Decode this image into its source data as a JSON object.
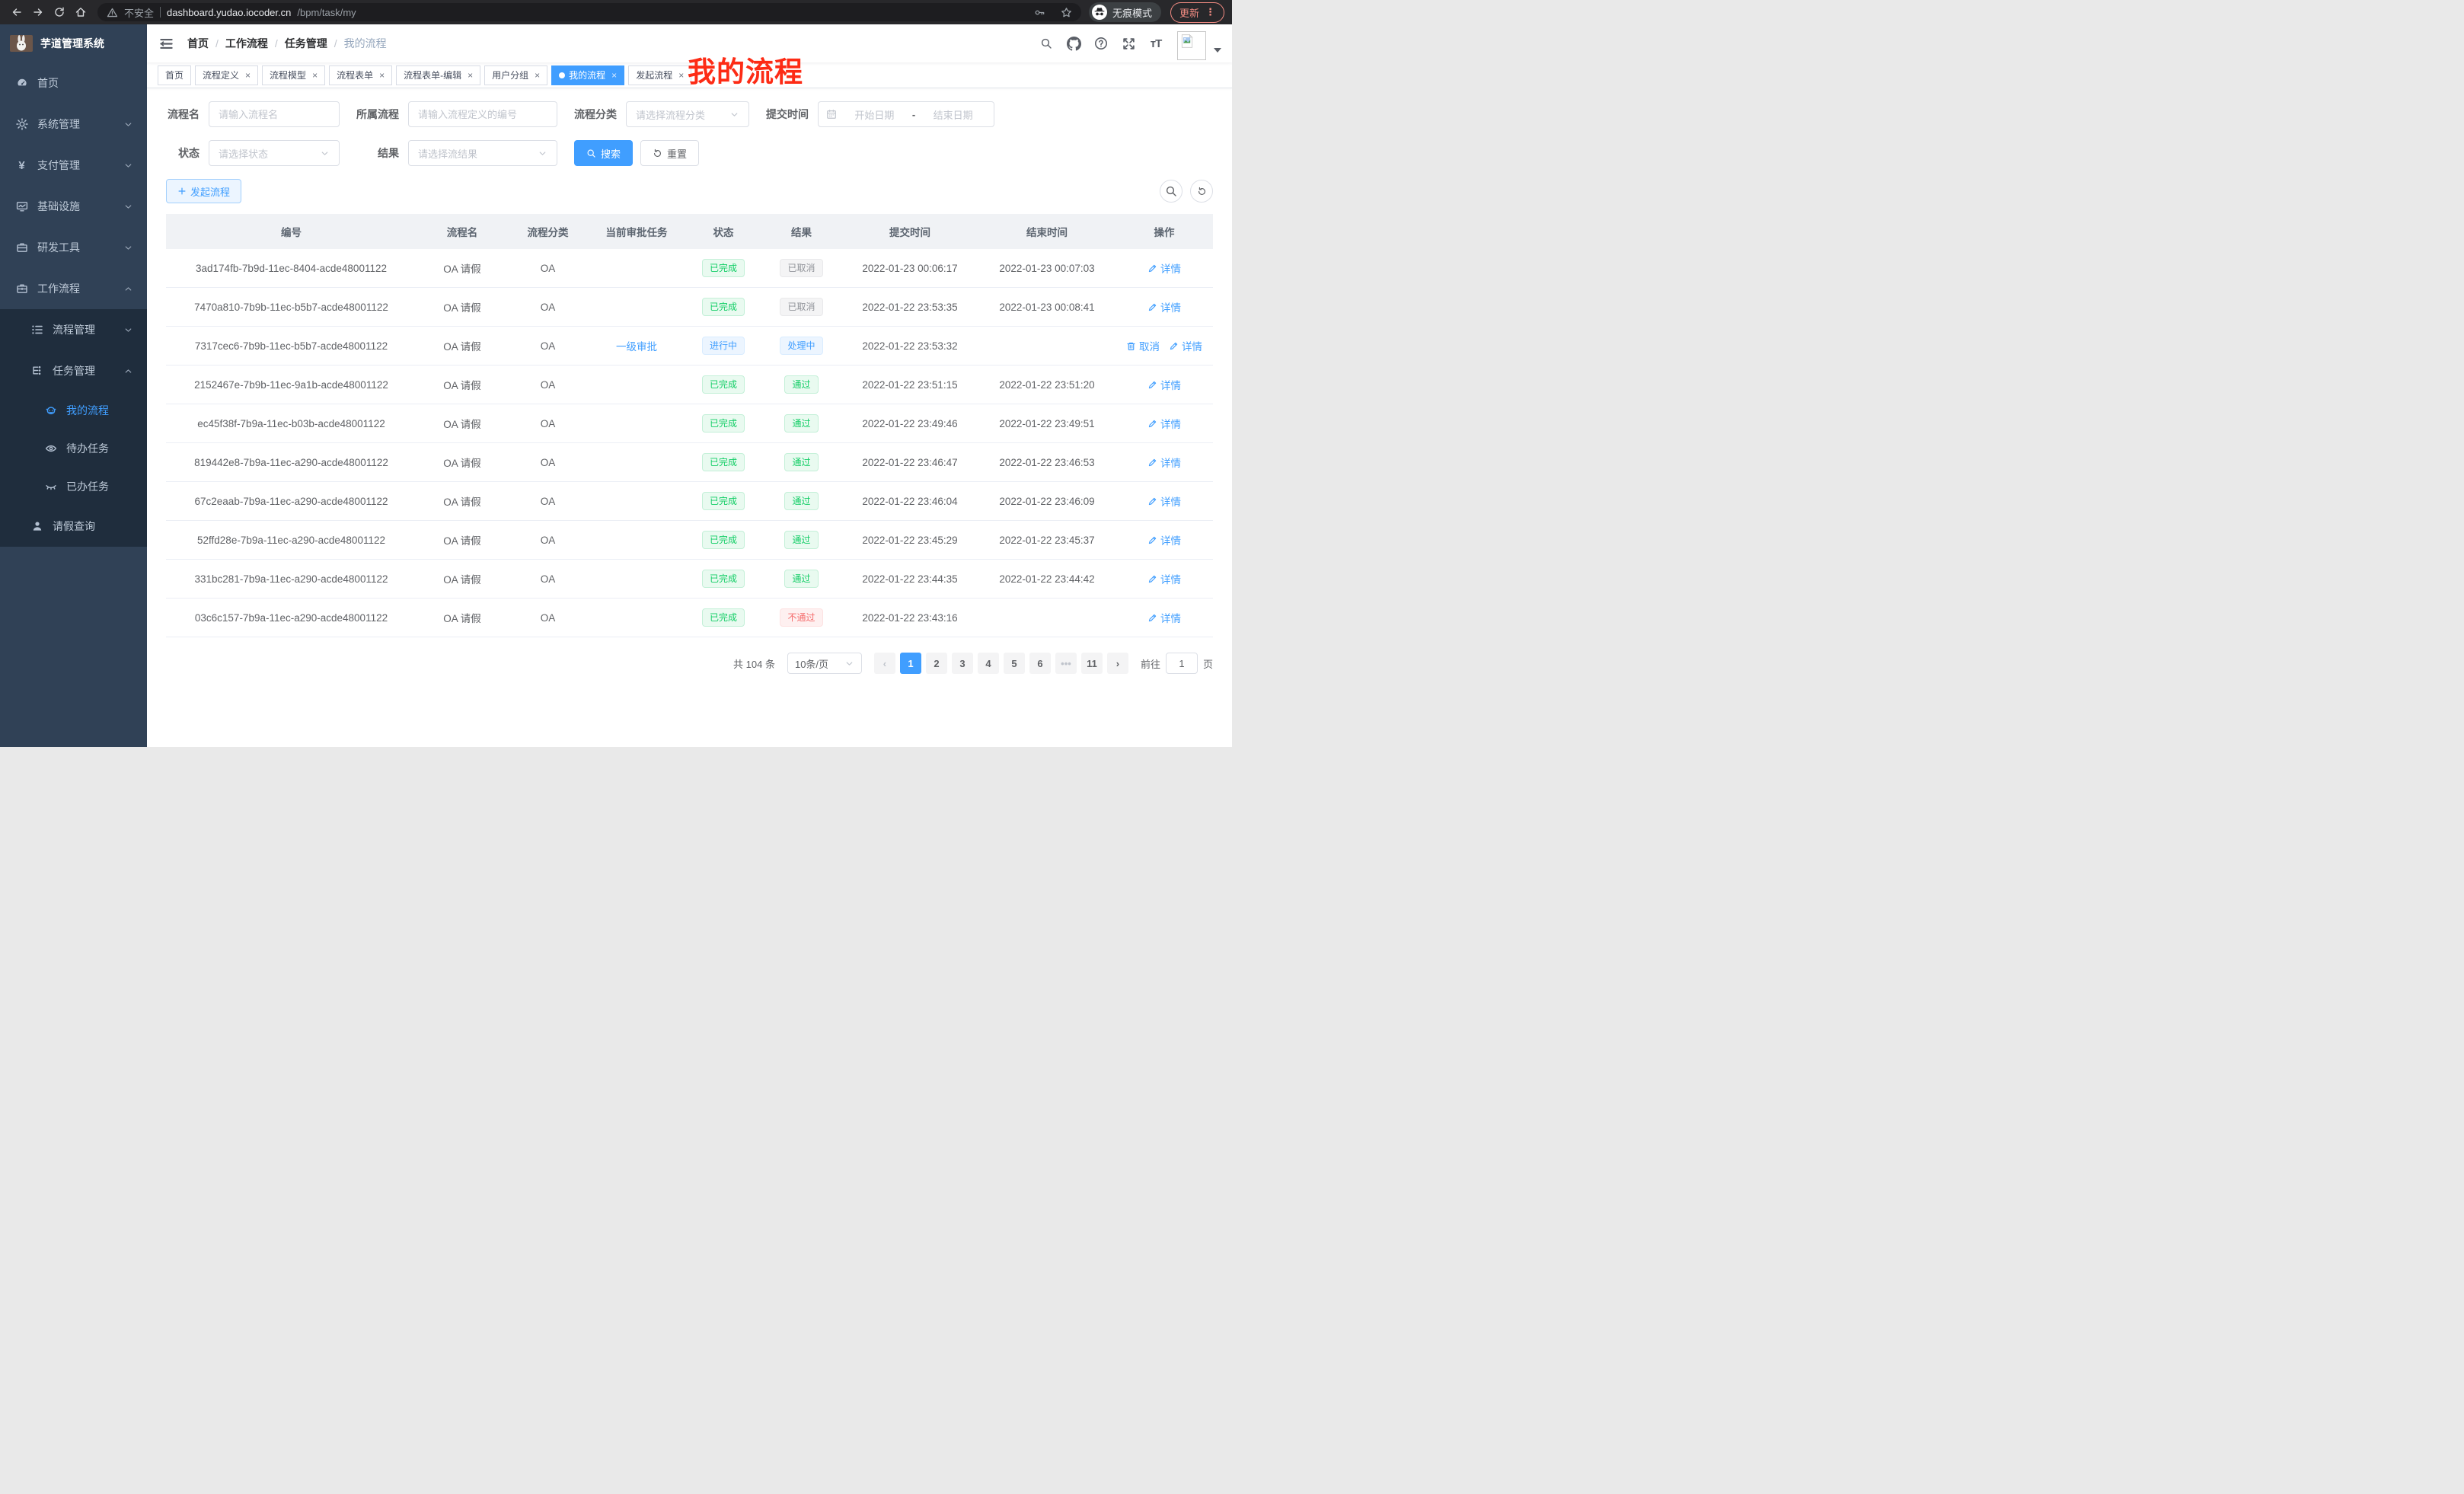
{
  "colors": {
    "primary": "#409eff",
    "success": "#13ce66",
    "danger": "#f56c6c",
    "info": "#909399",
    "annotation_red": "#fd2b15",
    "sidebar_bg": "#304156",
    "submenu_bg": "#1f2d3d"
  },
  "browser": {
    "nav_icons": [
      "back-icon",
      "forward-icon",
      "reload-icon",
      "home-icon"
    ],
    "security_label": "不安全",
    "url_host": "dashboard.yudao.iocoder.cn",
    "url_path": "/bpm/task/my",
    "pill_icons": [
      "key-icon",
      "star-icon"
    ],
    "incognito_label": "无痕模式",
    "update_label": "更新"
  },
  "sidebar": {
    "app_title": "芋道管理系统",
    "menu": [
      {
        "label": "首页",
        "icon": "dashboard-icon",
        "level": 1
      },
      {
        "label": "系统管理",
        "icon": "gear-icon",
        "level": 1,
        "arrow": "down"
      },
      {
        "label": "支付管理",
        "icon": "yen-icon",
        "level": 1,
        "arrow": "down"
      },
      {
        "label": "基础设施",
        "icon": "monitor-icon",
        "level": 1,
        "arrow": "down"
      },
      {
        "label": "研发工具",
        "icon": "toolbox-icon",
        "level": 1,
        "arrow": "down"
      },
      {
        "label": "工作流程",
        "icon": "workflow-icon",
        "level": 1,
        "arrow": "up"
      },
      {
        "label": "流程管理",
        "icon": "process-list-icon",
        "level": 2,
        "arrow": "down",
        "dark": true
      },
      {
        "label": "任务管理",
        "icon": "task-tree-icon",
        "level": 2,
        "arrow": "up",
        "dark": true
      },
      {
        "label": "我的流程",
        "icon": "robot-icon",
        "level": 3,
        "active": true,
        "dark": true
      },
      {
        "label": "待办任务",
        "icon": "eye-open-icon",
        "level": 3,
        "dark": true
      },
      {
        "label": "已办任务",
        "icon": "eye-closed-icon",
        "level": 3,
        "dark": true
      },
      {
        "label": "请假查询",
        "icon": "user-icon",
        "level": 2,
        "dark": true
      }
    ]
  },
  "navbar": {
    "breadcrumb": [
      "首页",
      "工作流程",
      "任务管理",
      "我的流程"
    ],
    "right_icons": [
      "search-icon",
      "github-icon",
      "question-icon",
      "fullscreen-icon",
      "font-size-icon"
    ]
  },
  "annotation": {
    "text": "我的流程"
  },
  "tabs": [
    {
      "label": "首页",
      "closable": false,
      "active": false
    },
    {
      "label": "流程定义",
      "closable": true,
      "active": false
    },
    {
      "label": "流程模型",
      "closable": true,
      "active": false
    },
    {
      "label": "流程表单",
      "closable": true,
      "active": false
    },
    {
      "label": "流程表单-编辑",
      "closable": true,
      "active": false
    },
    {
      "label": "用户分组",
      "closable": true,
      "active": false
    },
    {
      "label": "我的流程",
      "closable": true,
      "active": true
    },
    {
      "label": "发起流程",
      "closable": true,
      "active": false
    }
  ],
  "filters": {
    "name_label": "流程名",
    "name_placeholder": "请输入流程名",
    "definition_label": "所属流程",
    "definition_placeholder": "请输入流程定义的编号",
    "category_label": "流程分类",
    "category_placeholder": "请选择流程分类",
    "time_label": "提交时间",
    "time_start_placeholder": "开始日期",
    "time_separator": "-",
    "time_end_placeholder": "结束日期",
    "status_label": "状态",
    "status_placeholder": "请选择状态",
    "result_label": "结果",
    "result_placeholder": "请选择流结果",
    "search_label": "搜索",
    "reset_label": "重置"
  },
  "toolbar": {
    "create_label": "发起流程",
    "circle_icons": [
      "search-icon",
      "refresh-icon"
    ]
  },
  "table": {
    "columns": [
      "编号",
      "流程名",
      "流程分类",
      "当前审批任务",
      "状态",
      "结果",
      "提交时间",
      "结束时间",
      "操作"
    ],
    "rows": [
      {
        "id": "3ad174fb-7b9d-11ec-8404-acde48001122",
        "name": "OA 请假",
        "category": "OA",
        "current_task": "",
        "status": {
          "label": "已完成",
          "type": "success"
        },
        "result": {
          "label": "已取消",
          "type": "info"
        },
        "submit_time": "2022-01-23 00:06:17",
        "end_time": "2022-01-23 00:07:03",
        "actions": [
          {
            "label": "详情",
            "icon": "edit-icon"
          }
        ]
      },
      {
        "id": "7470a810-7b9b-11ec-b5b7-acde48001122",
        "name": "OA 请假",
        "category": "OA",
        "current_task": "",
        "status": {
          "label": "已完成",
          "type": "success"
        },
        "result": {
          "label": "已取消",
          "type": "info"
        },
        "submit_time": "2022-01-22 23:53:35",
        "end_time": "2022-01-23 00:08:41",
        "actions": [
          {
            "label": "详情",
            "icon": "edit-icon"
          }
        ]
      },
      {
        "id": "7317cec6-7b9b-11ec-b5b7-acde48001122",
        "name": "OA 请假",
        "category": "OA",
        "current_task": "一级审批",
        "status": {
          "label": "进行中",
          "type": "primary"
        },
        "result": {
          "label": "处理中",
          "type": "primary"
        },
        "submit_time": "2022-01-22 23:53:32",
        "end_time": "",
        "actions": [
          {
            "label": "取消",
            "icon": "trash-icon"
          },
          {
            "label": "详情",
            "icon": "edit-icon"
          }
        ]
      },
      {
        "id": "2152467e-7b9b-11ec-9a1b-acde48001122",
        "name": "OA 请假",
        "category": "OA",
        "current_task": "",
        "status": {
          "label": "已完成",
          "type": "success"
        },
        "result": {
          "label": "通过",
          "type": "success"
        },
        "submit_time": "2022-01-22 23:51:15",
        "end_time": "2022-01-22 23:51:20",
        "actions": [
          {
            "label": "详情",
            "icon": "edit-icon"
          }
        ]
      },
      {
        "id": "ec45f38f-7b9a-11ec-b03b-acde48001122",
        "name": "OA 请假",
        "category": "OA",
        "current_task": "",
        "status": {
          "label": "已完成",
          "type": "success"
        },
        "result": {
          "label": "通过",
          "type": "success"
        },
        "submit_time": "2022-01-22 23:49:46",
        "end_time": "2022-01-22 23:49:51",
        "actions": [
          {
            "label": "详情",
            "icon": "edit-icon"
          }
        ]
      },
      {
        "id": "819442e8-7b9a-11ec-a290-acde48001122",
        "name": "OA 请假",
        "category": "OA",
        "current_task": "",
        "status": {
          "label": "已完成",
          "type": "success"
        },
        "result": {
          "label": "通过",
          "type": "success"
        },
        "submit_time": "2022-01-22 23:46:47",
        "end_time": "2022-01-22 23:46:53",
        "actions": [
          {
            "label": "详情",
            "icon": "edit-icon"
          }
        ]
      },
      {
        "id": "67c2eaab-7b9a-11ec-a290-acde48001122",
        "name": "OA 请假",
        "category": "OA",
        "current_task": "",
        "status": {
          "label": "已完成",
          "type": "success"
        },
        "result": {
          "label": "通过",
          "type": "success"
        },
        "submit_time": "2022-01-22 23:46:04",
        "end_time": "2022-01-22 23:46:09",
        "actions": [
          {
            "label": "详情",
            "icon": "edit-icon"
          }
        ]
      },
      {
        "id": "52ffd28e-7b9a-11ec-a290-acde48001122",
        "name": "OA 请假",
        "category": "OA",
        "current_task": "",
        "status": {
          "label": "已完成",
          "type": "success"
        },
        "result": {
          "label": "通过",
          "type": "success"
        },
        "submit_time": "2022-01-22 23:45:29",
        "end_time": "2022-01-22 23:45:37",
        "actions": [
          {
            "label": "详情",
            "icon": "edit-icon"
          }
        ]
      },
      {
        "id": "331bc281-7b9a-11ec-a290-acde48001122",
        "name": "OA 请假",
        "category": "OA",
        "current_task": "",
        "status": {
          "label": "已完成",
          "type": "success"
        },
        "result": {
          "label": "通过",
          "type": "success"
        },
        "submit_time": "2022-01-22 23:44:35",
        "end_time": "2022-01-22 23:44:42",
        "actions": [
          {
            "label": "详情",
            "icon": "edit-icon"
          }
        ]
      },
      {
        "id": "03c6c157-7b9a-11ec-a290-acde48001122",
        "name": "OA 请假",
        "category": "OA",
        "current_task": "",
        "status": {
          "label": "已完成",
          "type": "success"
        },
        "result": {
          "label": "不通过",
          "type": "danger"
        },
        "submit_time": "2022-01-22 23:43:16",
        "end_time": "",
        "actions": [
          {
            "label": "详情",
            "icon": "edit-icon"
          }
        ]
      }
    ]
  },
  "pagination": {
    "total_label": "共 104 条",
    "page_size_label": "10条/页",
    "pages": [
      "1",
      "2",
      "3",
      "4",
      "5",
      "6",
      "•••",
      "11"
    ],
    "active_page": "1",
    "jump_label": "前往",
    "jump_value": "1",
    "jump_unit": "页"
  }
}
